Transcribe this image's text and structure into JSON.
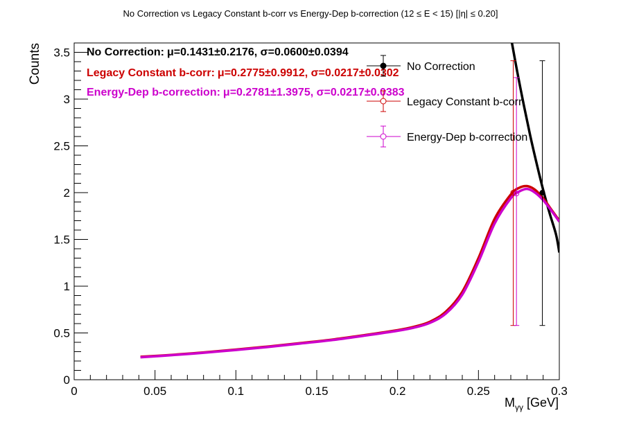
{
  "chart_data": {
    "type": "line",
    "title": "No Correction vs Legacy Constant b-corr vs Energy-Dep b-correction   (12 ≤ E < 15)   [|η| ≤ 0.20]",
    "xlabel": "M",
    "xlabel_subscript": "γγ",
    "xlabel_unit": " [GeV]",
    "ylabel": "Counts",
    "xlim": [
      0,
      0.3
    ],
    "ylim": [
      0,
      3.6
    ],
    "x_ticks": [
      0,
      0.05,
      0.1,
      0.15,
      0.2,
      0.25,
      0.3
    ],
    "x_tick_labels": [
      "0",
      "0.05",
      "0.1",
      "0.15",
      "0.2",
      "0.25",
      "0.3"
    ],
    "y_ticks": [
      0,
      0.5,
      1,
      1.5,
      2,
      2.5,
      3,
      3.5
    ],
    "y_tick_labels": [
      "0",
      "0.5",
      "1",
      "1.5",
      "2",
      "2.5",
      "3",
      "3.5"
    ],
    "grid": false,
    "legend_position": "top-right",
    "series": [
      {
        "name": "No Correction",
        "color": "#000000",
        "marker": "filled-circle",
        "points": [
          {
            "x": 0.2895,
            "y": 2.0,
            "ylow": 0.58,
            "yhigh": 3.41
          }
        ],
        "fit": {
          "x": [
            0.2705,
            0.274,
            0.278,
            0.282,
            0.286,
            0.29,
            0.294,
            0.298,
            0.3
          ],
          "y": [
            3.62,
            3.29,
            2.94,
            2.61,
            2.31,
            2.03,
            1.78,
            1.55,
            1.36
          ]
        }
      },
      {
        "name": "Legacy Constant b-corr",
        "color": "#cc0000",
        "marker": "open-circle",
        "points": [
          {
            "x": 0.2715,
            "y": 2.0,
            "ylow": 0.58,
            "yhigh": 3.41
          }
        ],
        "fit": {
          "x": [
            0.041,
            0.06,
            0.08,
            0.1,
            0.12,
            0.14,
            0.16,
            0.18,
            0.2,
            0.21,
            0.22,
            0.23,
            0.24,
            0.25,
            0.26,
            0.27,
            0.275,
            0.28,
            0.285,
            0.29,
            0.295,
            0.3
          ],
          "y": [
            0.245,
            0.265,
            0.292,
            0.322,
            0.355,
            0.392,
            0.43,
            0.478,
            0.53,
            0.565,
            0.62,
            0.73,
            0.94,
            1.3,
            1.72,
            1.98,
            2.05,
            2.07,
            2.03,
            1.94,
            1.82,
            1.7
          ]
        }
      },
      {
        "name": "Energy-Dep b-correction",
        "color": "#cc00cc",
        "marker": "open-circle",
        "points": [
          {
            "x": 0.2735,
            "y": 1.99,
            "ylow": 0.58,
            "yhigh": 3.23
          }
        ],
        "fit": {
          "x": [
            0.041,
            0.06,
            0.08,
            0.1,
            0.12,
            0.14,
            0.16,
            0.18,
            0.2,
            0.21,
            0.22,
            0.23,
            0.24,
            0.25,
            0.26,
            0.27,
            0.275,
            0.28,
            0.285,
            0.29,
            0.295,
            0.3
          ],
          "y": [
            0.24,
            0.262,
            0.288,
            0.318,
            0.35,
            0.387,
            0.425,
            0.472,
            0.523,
            0.556,
            0.608,
            0.71,
            0.91,
            1.26,
            1.67,
            1.94,
            2.01,
            2.04,
            2.0,
            1.92,
            1.81,
            1.69
          ]
        }
      }
    ],
    "annotations": [
      {
        "label": "No Correction:",
        "text": "μ=0.1431±0.2176, σ=0.0600±0.0394",
        "color": "#000000"
      },
      {
        "label": "Legacy Constant b-corr:",
        "text": "μ=0.2775±0.9912, σ=0.0217±0.0302",
        "color": "#cc0000"
      },
      {
        "label": "Energy-Dep b-correction:",
        "text": "μ=0.2781±1.3975, σ=0.0217±0.0383",
        "color": "#cc00cc"
      }
    ]
  }
}
